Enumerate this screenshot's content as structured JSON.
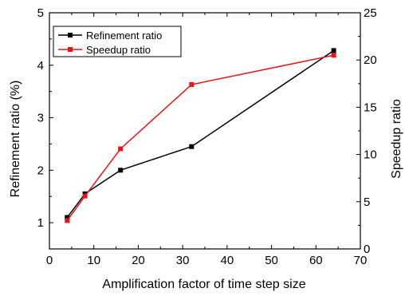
{
  "chart_data": {
    "type": "line",
    "title": "",
    "xlabel": "Amplification factor of time step size",
    "ylabel_left": "Refinement ratio (%)",
    "ylabel_right": "Speedup ratio",
    "xlim": [
      0,
      70
    ],
    "ylim_left": [
      0.5,
      5
    ],
    "ylim_right": [
      0,
      25
    ],
    "x_ticks": [
      0,
      10,
      20,
      30,
      40,
      50,
      60,
      70
    ],
    "y_left_ticks": [
      1,
      2,
      3,
      4,
      5
    ],
    "y_right_ticks": [
      0,
      5,
      10,
      15,
      20,
      25
    ],
    "grid": false,
    "legend_position": "top-left",
    "series": [
      {
        "name": "Refinement ratio",
        "axis": "left",
        "color": "#000000",
        "marker": "square",
        "x": [
          4,
          8,
          16,
          32,
          64
        ],
        "y": [
          1.1,
          1.55,
          2.0,
          2.45,
          4.28
        ]
      },
      {
        "name": "Speedup ratio",
        "axis": "right",
        "color": "#e8141a",
        "marker": "square",
        "x": [
          4,
          8,
          16,
          32,
          64
        ],
        "y": [
          3.0,
          5.6,
          10.6,
          17.4,
          20.5
        ]
      }
    ]
  }
}
